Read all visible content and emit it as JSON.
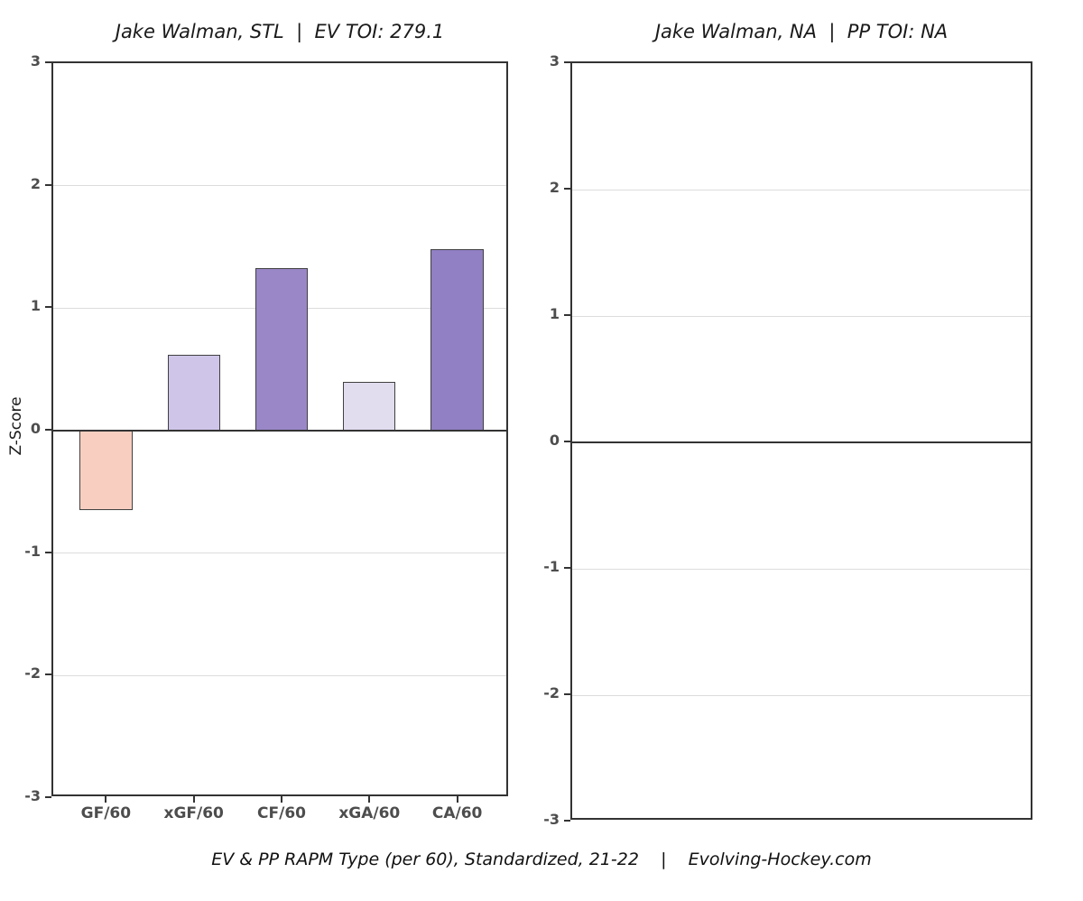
{
  "caption": "EV & PP RAPM Type (per 60), Standardized, 21-22    |    Evolving-Hockey.com",
  "colors": {
    "background": "#ffffff",
    "panel_border": "#333333",
    "grid_line": "#dcdcdc",
    "zero_line": "#333333",
    "tick_label": "#4d4d4d",
    "axis_title": "#1a1a1a",
    "bar_border": "#404040"
  },
  "chart_data": [
    {
      "type": "bar",
      "panel": "even-strength",
      "title": "Jake Walman, STL  |  EV TOI: 279.1",
      "ylabel": "Z-Score",
      "ylim": [
        -3,
        3
      ],
      "yticks": [
        3,
        2,
        1,
        0,
        -1,
        -2,
        -3
      ],
      "grid": "horizontal-light-gray-plus-dark-zero-line",
      "legend": "none",
      "categories": [
        "GF/60",
        "xGF/60",
        "CF/60",
        "xGA/60",
        "CA/60"
      ],
      "values": [
        -0.65,
        0.62,
        1.33,
        0.4,
        1.48
      ],
      "bar_colors": [
        "#f7cec0",
        "#cfc5e8",
        "#9a87c8",
        "#e2dcef",
        "#9180c3"
      ]
    },
    {
      "type": "bar",
      "panel": "power-play",
      "title": "Jake Walman, NA  |  PP TOI: NA",
      "ylabel": "",
      "ylim": [
        -3,
        3
      ],
      "yticks": [
        3,
        2,
        1,
        0,
        -1,
        -2,
        -3
      ],
      "grid": "horizontal-light-gray-plus-dark-zero-line",
      "legend": "none",
      "categories": [],
      "values": [],
      "bar_colors": []
    }
  ]
}
